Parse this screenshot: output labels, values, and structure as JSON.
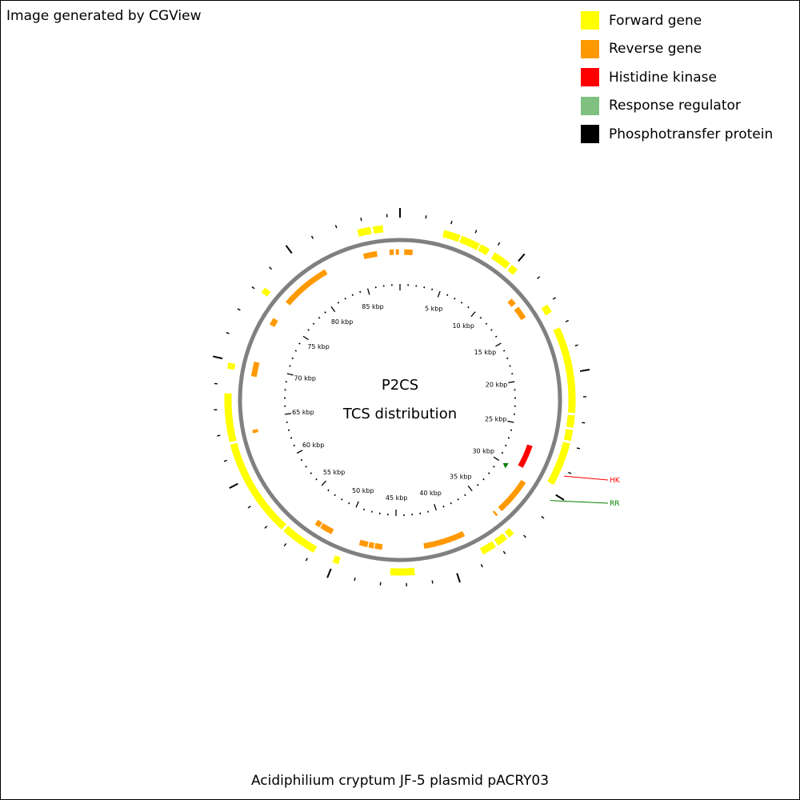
{
  "header": {
    "note": "Image generated by CGView"
  },
  "legend": {
    "items": [
      {
        "label": "Forward gene",
        "color": "#ffff00"
      },
      {
        "label": "Reverse gene",
        "color": "#ff9900"
      },
      {
        "label": "Histidine kinase",
        "color": "#ff0000"
      },
      {
        "label": "Response regulator",
        "color": "#80c080"
      },
      {
        "label": "Phosphotransfer protein",
        "color": "#000000"
      }
    ]
  },
  "center": {
    "line1": "P2CS",
    "line2": "TCS distribution"
  },
  "caption": "Acidiphilium cryptum JF-5 plasmid pACRY03",
  "plasmid": {
    "length_kbp": 89,
    "backbone_color": "#808080",
    "tick_labels": [
      "5 kbp",
      "10 kbp",
      "15 kbp",
      "20 kbp",
      "25 kbp",
      "30 kbp",
      "35 kbp",
      "40 kbp",
      "45 kbp",
      "50 kbp",
      "55 kbp",
      "60 kbp",
      "65 kbp",
      "70 kbp",
      "75 kbp",
      "80 kbp",
      "85 kbp"
    ],
    "forward_genes_kbp": [
      [
        3.6,
        5.0
      ],
      [
        5.1,
        6.7
      ],
      [
        6.8,
        7.6
      ],
      [
        8.1,
        9.6
      ],
      [
        9.8,
        10.4
      ],
      [
        14.1,
        14.8
      ],
      [
        16.2,
        23.3
      ],
      [
        23.5,
        24.5
      ],
      [
        24.7,
        25.6
      ],
      [
        25.8,
        29.4
      ],
      [
        34.5,
        35.0
      ],
      [
        35.2,
        36.1
      ],
      [
        36.3,
        37.5
      ],
      [
        43.3,
        45.3
      ],
      [
        49.6,
        50.1
      ],
      [
        51.8,
        54.8
      ],
      [
        55.0,
        63.1
      ],
      [
        63.3,
        67.3
      ],
      [
        69.3,
        69.8
      ],
      [
        76.1,
        76.6
      ],
      [
        85.5,
        86.6
      ],
      [
        86.8,
        87.6
      ]
    ],
    "reverse_genes_kbp": [
      [
        11.8,
        12.4
      ],
      [
        12.8,
        14.0
      ],
      [
        30.5,
        34.0
      ],
      [
        34.5,
        34.7
      ],
      [
        38.2,
        42.2
      ],
      [
        46.2,
        46.9
      ],
      [
        47.0,
        47.5
      ],
      [
        47.6,
        48.4
      ],
      [
        51.2,
        52.4
      ],
      [
        52.5,
        53.0
      ],
      [
        63.6,
        63.9
      ],
      [
        69.0,
        70.4
      ],
      [
        74.2,
        74.9
      ],
      [
        76.8,
        80.9
      ],
      [
        80.9,
        81.6
      ],
      [
        85.5,
        86.8
      ],
      [
        88.0,
        88.4
      ],
      [
        88.6,
        88.9
      ],
      [
        89.4,
        90.2
      ]
    ],
    "histidine_kinases_kbp": [
      [
        27.0,
        29.4
      ]
    ],
    "response_regulators_kbp": [
      [
        29.8,
        30.3
      ]
    ],
    "phosphotransfer_proteins_kbp": [],
    "callouts": [
      {
        "label": "HK",
        "color": "#ff0000",
        "pos_kbp": 28.4
      },
      {
        "label": "RR",
        "color": "#008000",
        "pos_kbp": 30.6
      }
    ]
  }
}
